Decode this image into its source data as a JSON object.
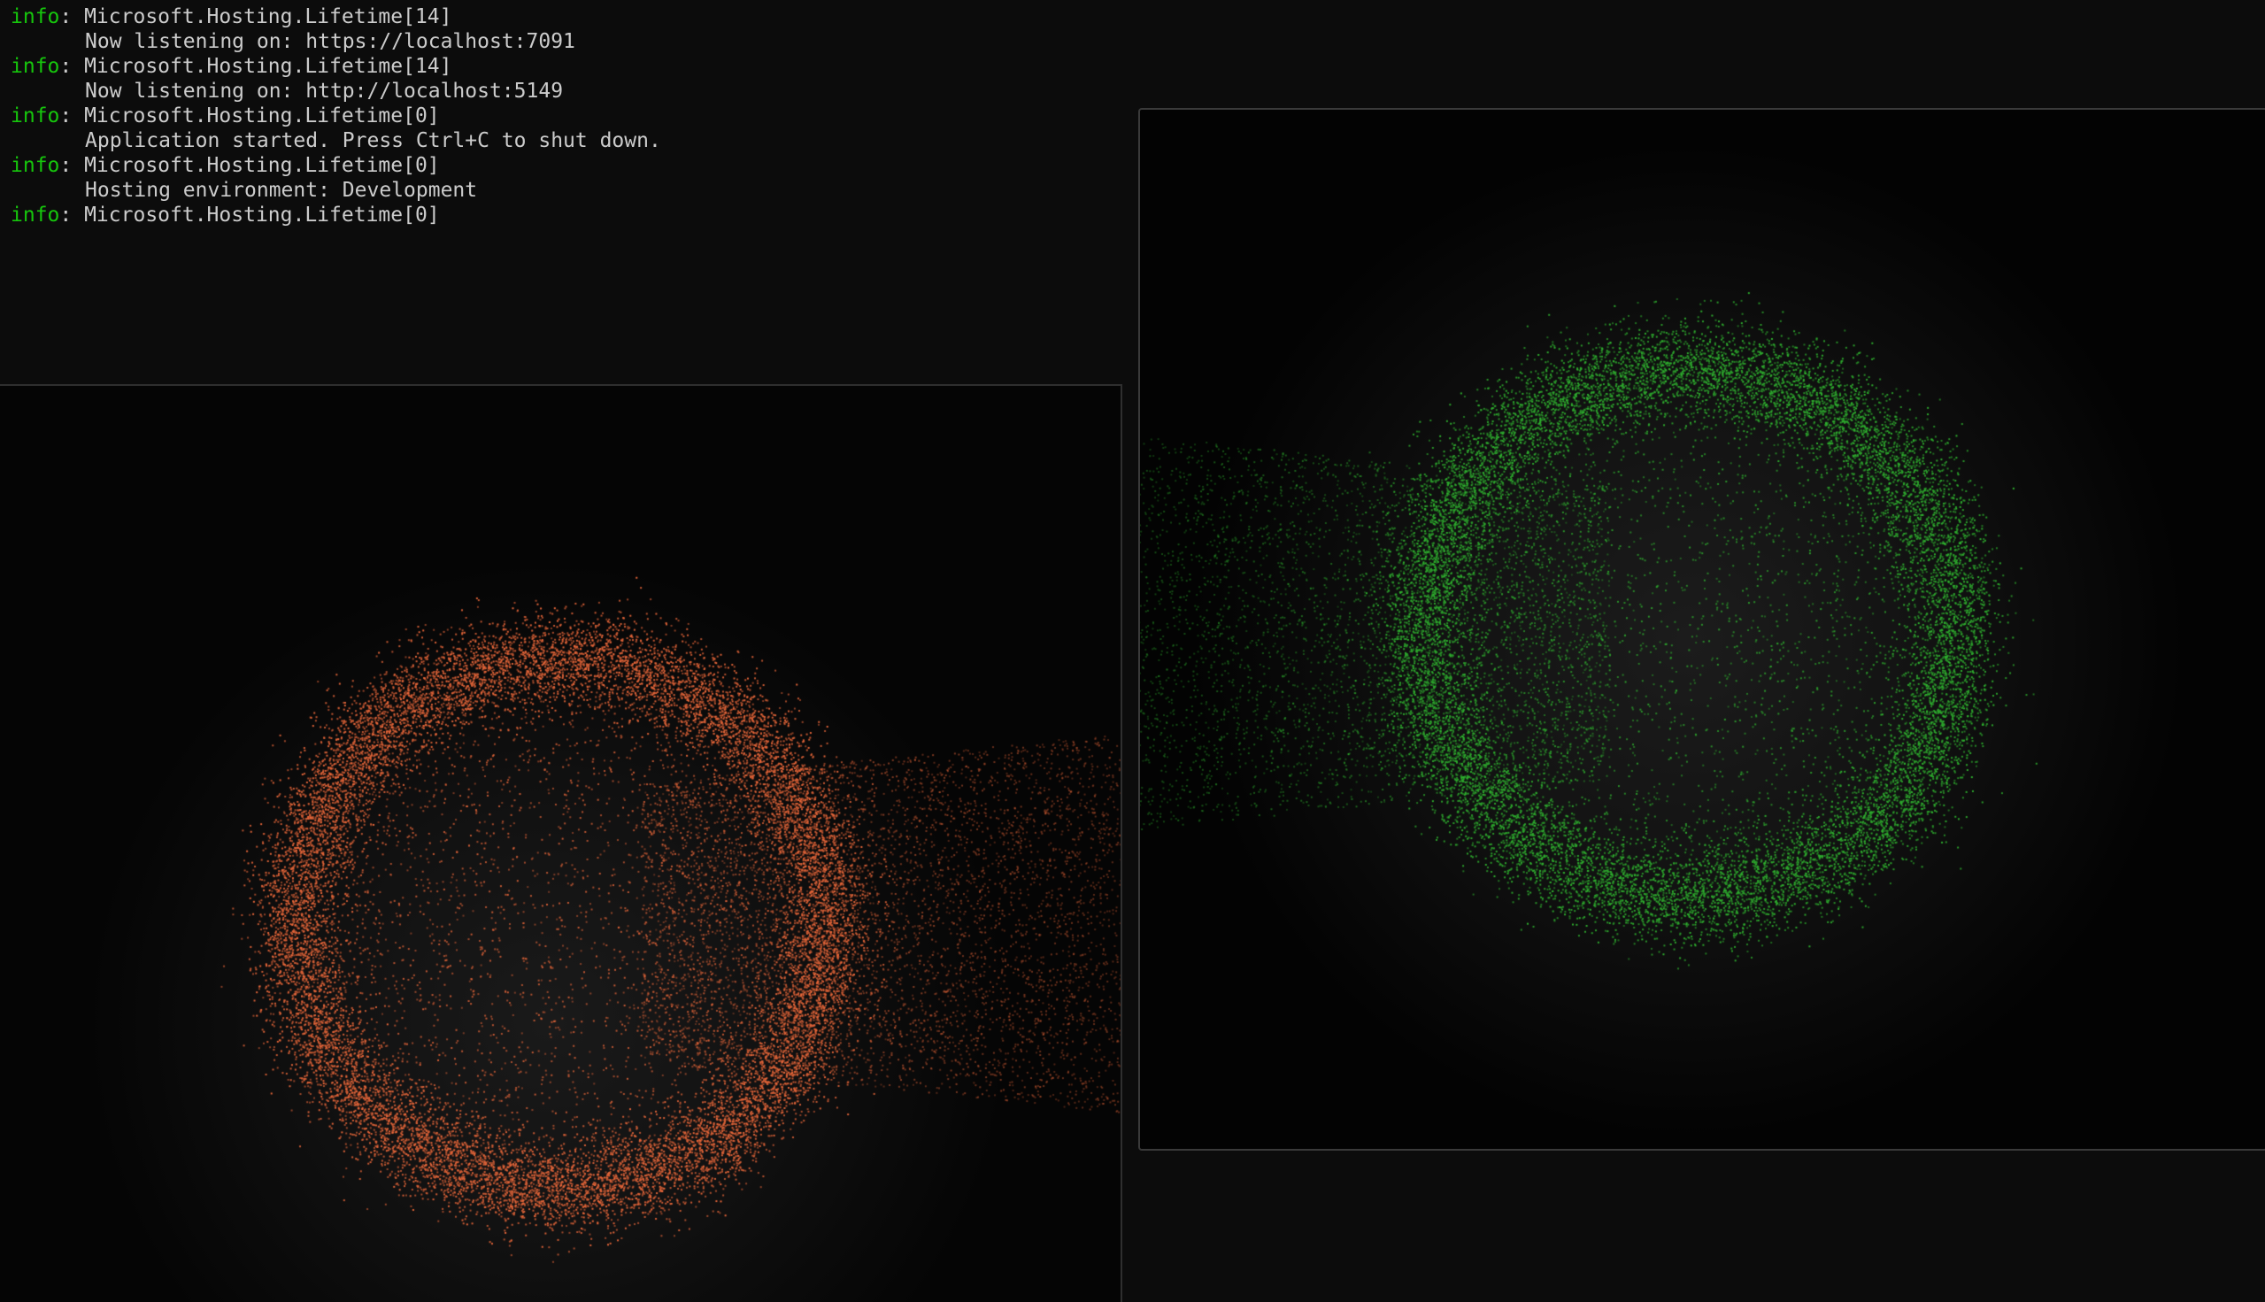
{
  "terminal": {
    "lines": [
      {
        "level": "info",
        "text": ": Microsoft.Hosting.Lifetime[14]"
      },
      {
        "detail": "Now listening on: https://localhost:7091"
      },
      {
        "level": "info",
        "text": ": Microsoft.Hosting.Lifetime[14]"
      },
      {
        "detail": "Now listening on: http://localhost:5149"
      },
      {
        "level": "info",
        "text": ": Microsoft.Hosting.Lifetime[0]"
      },
      {
        "detail": "Application started. Press Ctrl+C to shut down."
      },
      {
        "level": "info",
        "text": ": Microsoft.Hosting.Lifetime[0]"
      },
      {
        "detail": "Hosting environment: Development"
      },
      {
        "level": "info",
        "text": ": Microsoft.Hosting.Lifetime[0]"
      }
    ],
    "level_color": "#16c60c",
    "text_color": "#cccccc",
    "background": "#0c0c0c"
  },
  "windows": {
    "orange": {
      "particle_color": "#e8673a",
      "shape": "ring with trailing particle stream to the right"
    },
    "green": {
      "particle_color": "#2fb02f",
      "shape": "ring with trailing particle stream to the left"
    }
  }
}
